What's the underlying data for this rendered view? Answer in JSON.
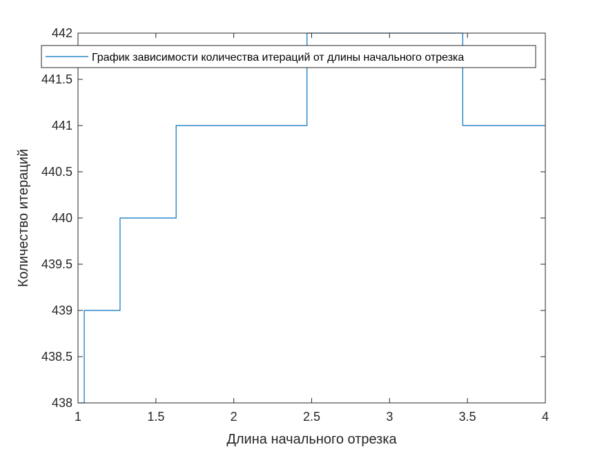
{
  "chart_data": {
    "type": "line",
    "title": "",
    "xlabel": "Длина начального отрезка",
    "ylabel": "Количество итераций",
    "xlim": [
      1,
      4
    ],
    "ylim": [
      438,
      442
    ],
    "xticks": [
      1,
      1.5,
      2,
      2.5,
      3,
      3.5,
      4
    ],
    "yticks": [
      438,
      438.5,
      439,
      439.5,
      440,
      440.5,
      441,
      441.5,
      442
    ],
    "xtick_labels": [
      "1",
      "1.5",
      "2",
      "2.5",
      "3",
      "3.5",
      "4"
    ],
    "ytick_labels": [
      "438",
      "438.5",
      "439",
      "439.5",
      "440",
      "440.5",
      "441",
      "441.5",
      "442"
    ],
    "grid": false,
    "legend_position": "top",
    "series": [
      {
        "name": "График зависимости количества итераций от длины начального отрезка",
        "color": "#0072bd",
        "step": true,
        "x": [
          1,
          1.04,
          1.27,
          1.63,
          2.47,
          3.47,
          4
        ],
        "y": [
          438,
          439,
          440,
          441,
          442,
          441,
          441
        ]
      }
    ]
  }
}
